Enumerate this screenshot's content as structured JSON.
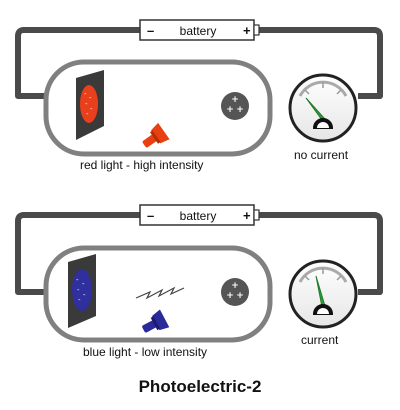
{
  "title": "Photoelectric-2",
  "colors": {
    "wire": "#4a4a4a",
    "red_plate": "#e8401c",
    "blue_plate": "#2f2f9e",
    "red_lamp": "#e84010",
    "blue_lamp": "#2a2a9a",
    "needle": "#2e9e3a"
  },
  "panels": [
    {
      "battery": {
        "neg": "–",
        "label": "battery",
        "pos": "+"
      },
      "light_caption": "red light - high intensity",
      "meter_caption": "no current",
      "plate_icon": "metal-plate-red-icon",
      "lamp_icon": "red-lamp-icon",
      "meter_icon": "ammeter-icon",
      "collector_icon": "positive-collector-icon",
      "photon_icon": "",
      "meter_level": 0.15
    },
    {
      "battery": {
        "neg": "–",
        "label": "battery",
        "pos": "+"
      },
      "light_caption": "blue light - low intensity",
      "meter_caption": "current",
      "plate_icon": "metal-plate-blue-icon",
      "lamp_icon": "blue-lamp-icon",
      "meter_icon": "ammeter-icon",
      "collector_icon": "positive-collector-icon",
      "photon_icon": "photon-zigzag-icon",
      "meter_level": 0.35
    }
  ]
}
